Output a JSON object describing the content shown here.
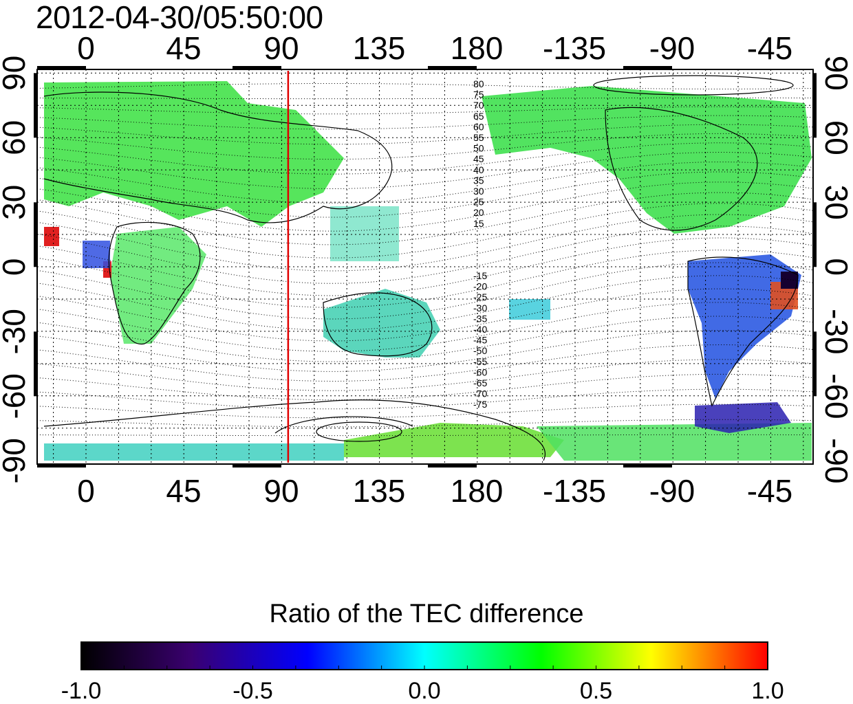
{
  "title": "2012-04-30/05:50:00",
  "map": {
    "lon_tick_labels": [
      "0",
      "45",
      "90",
      "135",
      "180",
      "-135",
      "-90",
      "-45"
    ],
    "lat_tick_labels_left": [
      "90",
      "60",
      "30",
      "0",
      "-30",
      "-60",
      "-90"
    ],
    "lat_tick_labels_right": [
      "90",
      "60",
      "30",
      "0",
      "-30",
      "-60",
      "-90"
    ],
    "contour_labels_north": [
      "80",
      "75",
      "70",
      "65",
      "60",
      "55",
      "50",
      "45",
      "40",
      "35",
      "30",
      "25",
      "20",
      "15"
    ],
    "contour_labels_south": [
      "-15",
      "-20",
      "-25",
      "-30",
      "-35",
      "-40",
      "-45",
      "-50",
      "-55",
      "-60",
      "-65",
      "-70",
      "-75"
    ],
    "marker_line_color": "#e00000",
    "marker_longitude": 93
  },
  "colorbar": {
    "title": "Ratio of the TEC difference",
    "tick_labels": [
      "-1.0",
      "-0.5",
      "0.0",
      "0.5",
      "1.0"
    ],
    "range": [
      -1.0,
      1.0
    ],
    "colors": [
      "#000000",
      "#3a0070",
      "#0000ff",
      "#00ffff",
      "#00ff00",
      "#ffff00",
      "#ff0000"
    ]
  }
}
